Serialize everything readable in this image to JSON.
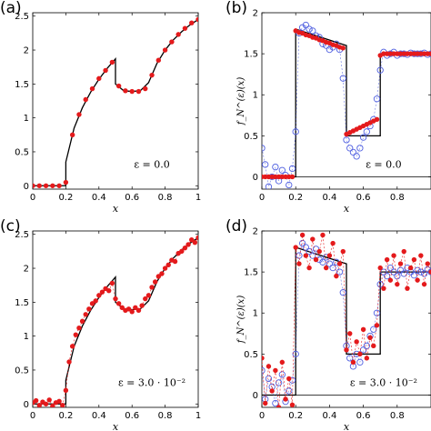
{
  "chart_data": [
    {
      "panel": "(a)",
      "type": "line",
      "xlabel": "x",
      "ylabel": "",
      "xlim": [
        0,
        1
      ],
      "ylim": [
        -0.05,
        2.55
      ],
      "xticks": [
        "0",
        "0.2",
        "0.4",
        "0.6",
        "0.8",
        "1"
      ],
      "yticks": [
        "0",
        "0.5",
        "1",
        "1.5",
        "2",
        "2.5"
      ],
      "annotation": "ε = 0.0",
      "series": [
        {
          "style": "black-line",
          "x": [
            0,
            0.2,
            0.2,
            0.25,
            0.3,
            0.35,
            0.4,
            0.45,
            0.5,
            0.5,
            0.55,
            0.6,
            0.65,
            0.7,
            0.75,
            0.8,
            0.85,
            0.9,
            0.95,
            1.0
          ],
          "y": [
            0,
            0,
            0.35,
            0.85,
            1.15,
            1.38,
            1.57,
            1.73,
            1.87,
            1.5,
            1.4,
            1.39,
            1.4,
            1.52,
            1.8,
            2.0,
            2.15,
            2.27,
            2.37,
            2.45
          ]
        },
        {
          "style": "red-dots",
          "x": [
            0,
            0.04,
            0.08,
            0.12,
            0.16,
            0.2,
            0.24,
            0.28,
            0.32,
            0.36,
            0.4,
            0.44,
            0.48,
            0.52,
            0.56,
            0.6,
            0.64,
            0.68,
            0.72,
            0.76,
            0.8,
            0.84,
            0.88,
            0.92,
            0.96,
            1.0
          ],
          "y": [
            0,
            0,
            0,
            0,
            0,
            0.05,
            0.75,
            1.05,
            1.27,
            1.43,
            1.58,
            1.7,
            1.82,
            1.47,
            1.4,
            1.39,
            1.39,
            1.43,
            1.63,
            1.85,
            2.0,
            2.12,
            2.23,
            2.32,
            2.4,
            2.45
          ]
        }
      ]
    },
    {
      "panel": "(b)",
      "type": "line",
      "xlabel": "x",
      "ylabel": "f_N^(ε)(x)",
      "xlim": [
        0,
        1
      ],
      "ylim": [
        -0.15,
        2.0
      ],
      "xticks": [
        "0",
        "0.2",
        "0.4",
        "0.6",
        "0.8"
      ],
      "yticks": [
        "0",
        "0.5",
        "1",
        "1.5",
        "2"
      ],
      "annotation": "ε = 0.0",
      "series": [
        {
          "style": "black-line",
          "x": [
            0,
            0.2,
            0.2,
            0.5,
            0.5,
            0.7,
            0.7,
            1.0
          ],
          "y": [
            0,
            0,
            1.8,
            1.6,
            0.5,
            0.5,
            1.5,
            1.5
          ]
        },
        {
          "style": "blue-circles",
          "x": [
            0.0,
            0.02,
            0.04,
            0.06,
            0.08,
            0.1,
            0.12,
            0.14,
            0.16,
            0.18,
            0.2,
            0.22,
            0.24,
            0.26,
            0.28,
            0.3,
            0.32,
            0.34,
            0.36,
            0.38,
            0.4,
            0.42,
            0.44,
            0.46,
            0.48,
            0.5,
            0.52,
            0.54,
            0.56,
            0.58,
            0.6,
            0.62,
            0.64,
            0.66,
            0.68,
            0.7,
            0.72,
            0.74,
            0.76,
            0.78,
            0.8,
            0.82,
            0.84,
            0.86,
            0.88,
            0.9,
            0.92,
            0.94,
            0.96,
            0.98,
            1.0
          ],
          "y": [
            0.35,
            0.15,
            -0.12,
            0.0,
            0.12,
            -0.05,
            0.08,
            0.02,
            -0.1,
            0.1,
            0.55,
            1.75,
            1.82,
            1.85,
            1.8,
            1.78,
            1.72,
            1.7,
            1.62,
            1.6,
            1.55,
            1.58,
            1.62,
            1.55,
            1.2,
            0.45,
            0.35,
            0.3,
            0.25,
            0.35,
            0.48,
            0.55,
            0.62,
            0.7,
            0.95,
            1.3,
            1.52,
            1.48,
            1.5,
            1.52,
            1.48,
            1.5,
            1.5,
            1.49,
            1.51,
            1.5,
            1.5,
            1.5,
            1.51,
            1.49,
            1.5
          ]
        },
        {
          "style": "red-dots",
          "x": [
            0.0,
            0.02,
            0.04,
            0.06,
            0.08,
            0.1,
            0.12,
            0.14,
            0.16,
            0.18,
            0.2,
            0.22,
            0.24,
            0.26,
            0.28,
            0.3,
            0.32,
            0.34,
            0.36,
            0.38,
            0.4,
            0.42,
            0.44,
            0.46,
            0.48,
            0.5,
            0.52,
            0.54,
            0.56,
            0.58,
            0.6,
            0.62,
            0.64,
            0.66,
            0.68,
            0.7,
            0.72,
            0.74,
            0.76,
            0.78,
            0.8,
            0.82,
            0.84,
            0.86,
            0.88,
            0.9,
            0.92,
            0.94,
            0.96,
            0.98,
            1.0
          ],
          "y": [
            0.0,
            0.0,
            0.0,
            0.0,
            0.0,
            0.0,
            0.0,
            0.0,
            0.0,
            0.0,
            1.78,
            1.76,
            1.75,
            1.73,
            1.72,
            1.7,
            1.69,
            1.67,
            1.66,
            1.64,
            1.63,
            1.61,
            1.6,
            1.58,
            1.57,
            0.52,
            0.54,
            0.56,
            0.58,
            0.6,
            0.62,
            0.64,
            0.66,
            0.68,
            0.7,
            1.48,
            1.5,
            1.5,
            1.5,
            1.5,
            1.5,
            1.5,
            1.5,
            1.5,
            1.5,
            1.5,
            1.5,
            1.5,
            1.5,
            1.5,
            1.5
          ]
        }
      ]
    },
    {
      "panel": "(c)",
      "type": "line",
      "xlabel": "x",
      "ylabel": "",
      "xlim": [
        0,
        1
      ],
      "ylim": [
        -0.05,
        2.55
      ],
      "xticks": [
        "0",
        "0.2",
        "0.4",
        "0.6",
        "0.8",
        "1"
      ],
      "yticks": [
        "0",
        "0.5",
        "1",
        "1.5",
        "2",
        "2.5"
      ],
      "annotation": "ε = 3.0 · 10⁻²",
      "series": [
        {
          "style": "black-line",
          "x": [
            0,
            0.2,
            0.2,
            0.25,
            0.3,
            0.35,
            0.4,
            0.45,
            0.5,
            0.5,
            0.55,
            0.6,
            0.65,
            0.7,
            0.75,
            0.8,
            0.85,
            0.9,
            0.95,
            1.0
          ],
          "y": [
            0,
            0,
            0.35,
            0.85,
            1.15,
            1.38,
            1.57,
            1.73,
            1.87,
            1.5,
            1.4,
            1.39,
            1.4,
            1.52,
            1.8,
            2.0,
            2.15,
            2.27,
            2.37,
            2.45
          ]
        },
        {
          "style": "red-dots-line",
          "x": [
            0.0,
            0.02,
            0.04,
            0.06,
            0.08,
            0.1,
            0.12,
            0.14,
            0.16,
            0.18,
            0.2,
            0.22,
            0.24,
            0.26,
            0.28,
            0.3,
            0.32,
            0.34,
            0.36,
            0.38,
            0.4,
            0.42,
            0.44,
            0.46,
            0.48,
            0.5,
            0.52,
            0.54,
            0.56,
            0.58,
            0.6,
            0.62,
            0.64,
            0.66,
            0.68,
            0.7,
            0.72,
            0.74,
            0.76,
            0.78,
            0.8,
            0.82,
            0.84,
            0.86,
            0.88,
            0.9,
            0.92,
            0.94,
            0.96,
            0.98,
            1.0
          ],
          "y": [
            0.02,
            0.05,
            -0.02,
            0.03,
            0.0,
            0.06,
            -0.03,
            0.02,
            0.04,
            -0.02,
            0.2,
            0.62,
            0.85,
            1.02,
            1.12,
            1.22,
            1.32,
            1.4,
            1.48,
            1.52,
            1.6,
            1.65,
            1.7,
            1.67,
            1.78,
            1.55,
            1.48,
            1.42,
            1.38,
            1.4,
            1.36,
            1.42,
            1.38,
            1.45,
            1.55,
            1.6,
            1.72,
            1.8,
            1.88,
            1.92,
            2.0,
            2.05,
            2.12,
            2.1,
            2.22,
            2.25,
            2.3,
            2.35,
            2.42,
            2.38,
            2.45
          ]
        }
      ]
    },
    {
      "panel": "(d)",
      "type": "line",
      "xlabel": "x",
      "ylabel": "f_N^(ε)(x)",
      "xlim": [
        0,
        1
      ],
      "ylim": [
        -0.15,
        2.0
      ],
      "xticks": [
        "0",
        "0.2",
        "0.4",
        "0.6",
        "0.8"
      ],
      "yticks": [
        "0",
        "0.5",
        "1",
        "1.5",
        "2"
      ],
      "annotation": "ε = 3.0 · 10⁻²",
      "series": [
        {
          "style": "black-line",
          "x": [
            0,
            0.2,
            0.2,
            0.5,
            0.5,
            0.7,
            0.7,
            1.0
          ],
          "y": [
            0,
            0,
            1.8,
            1.6,
            0.5,
            0.5,
            1.5,
            1.5
          ]
        },
        {
          "style": "blue-circles",
          "x": [
            0.0,
            0.02,
            0.04,
            0.06,
            0.08,
            0.1,
            0.12,
            0.14,
            0.16,
            0.18,
            0.2,
            0.22,
            0.24,
            0.26,
            0.28,
            0.3,
            0.32,
            0.34,
            0.36,
            0.38,
            0.4,
            0.42,
            0.44,
            0.46,
            0.48,
            0.5,
            0.52,
            0.54,
            0.56,
            0.58,
            0.6,
            0.62,
            0.64,
            0.66,
            0.68,
            0.7,
            0.72,
            0.74,
            0.76,
            0.78,
            0.8,
            0.82,
            0.84,
            0.86,
            0.88,
            0.9,
            0.92,
            0.94,
            0.96,
            0.98,
            1.0
          ],
          "y": [
            0.3,
            -0.05,
            0.2,
            0.1,
            -0.1,
            0.15,
            0.25,
            -0.08,
            0.05,
            0.18,
            0.5,
            1.7,
            1.85,
            1.8,
            1.75,
            1.7,
            1.78,
            1.65,
            1.62,
            1.68,
            1.6,
            1.55,
            1.62,
            1.5,
            1.25,
            0.6,
            0.45,
            0.35,
            0.5,
            0.4,
            0.55,
            0.6,
            0.72,
            0.8,
            1.0,
            1.35,
            1.5,
            1.45,
            1.55,
            1.5,
            1.45,
            1.52,
            1.48,
            1.55,
            1.5,
            1.46,
            1.52,
            1.5,
            1.48,
            1.53,
            1.5
          ]
        },
        {
          "style": "red-dots-line",
          "x": [
            0.0,
            0.02,
            0.04,
            0.06,
            0.08,
            0.1,
            0.12,
            0.14,
            0.16,
            0.18,
            0.2,
            0.22,
            0.24,
            0.26,
            0.28,
            0.3,
            0.32,
            0.34,
            0.36,
            0.38,
            0.4,
            0.42,
            0.44,
            0.46,
            0.48,
            0.5,
            0.52,
            0.54,
            0.56,
            0.58,
            0.6,
            0.62,
            0.64,
            0.66,
            0.68,
            0.7,
            0.72,
            0.74,
            0.76,
            0.78,
            0.8,
            0.82,
            0.84,
            0.86,
            0.88,
            0.9,
            0.92,
            0.94,
            0.96,
            0.98,
            1.0
          ],
          "y": [
            0.45,
            -0.1,
            0.35,
            0.05,
            0.3,
            -0.15,
            0.4,
            -0.05,
            0.2,
            -0.12,
            1.8,
            1.6,
            1.95,
            1.7,
            1.55,
            1.9,
            1.65,
            1.75,
            1.95,
            1.55,
            1.7,
            1.85,
            1.45,
            1.6,
            1.75,
            0.55,
            0.75,
            0.4,
            0.65,
            0.5,
            0.8,
            0.45,
            0.7,
            0.6,
            0.85,
            1.55,
            1.3,
            1.65,
            1.4,
            1.7,
            1.35,
            1.6,
            1.75,
            1.3,
            1.55,
            1.65,
            1.4,
            1.7,
            1.35,
            1.6,
            1.5
          ]
        }
      ]
    }
  ],
  "colors": {
    "red": "#e41a1c",
    "blue": "#4f5fe0",
    "black": "#000000"
  }
}
